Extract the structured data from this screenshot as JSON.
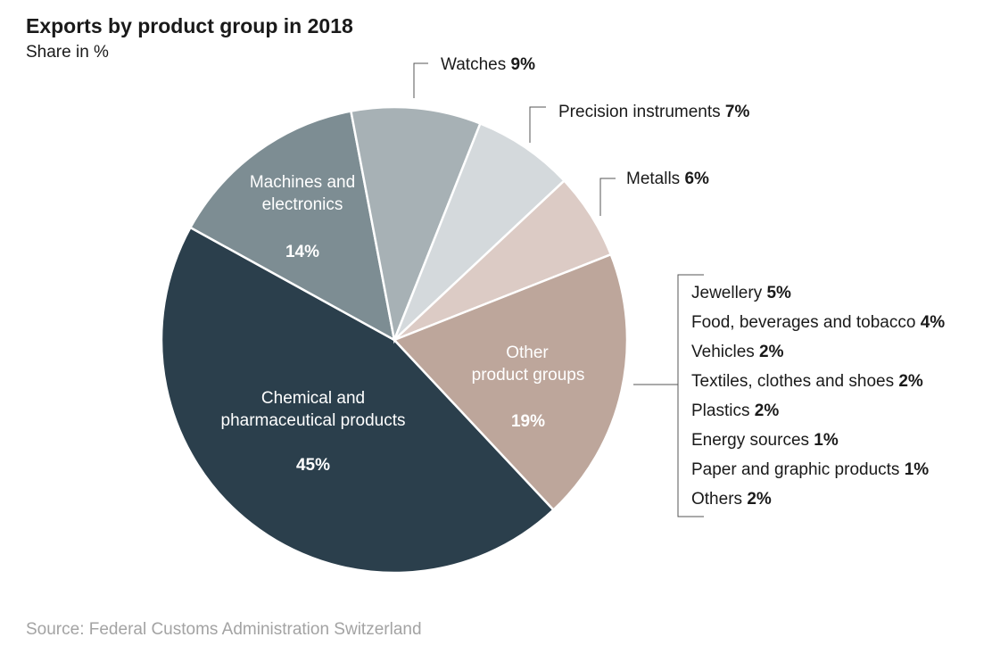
{
  "chart_data": {
    "type": "pie",
    "title": "Exports by product group in 2018",
    "subtitle": "Share in %",
    "source": "Source: Federal Customs Administration Switzerland",
    "slices": [
      {
        "label": "Chemical and pharmaceutical products",
        "value": 45,
        "display": "45%",
        "color": "#2b3f4c"
      },
      {
        "label": "Machines and electronics",
        "value": 14,
        "display": "14%",
        "color": "#7d8d93"
      },
      {
        "label": "Watches",
        "value": 9,
        "display": "9%",
        "color": "#a7b1b5"
      },
      {
        "label": "Precision instruments",
        "value": 7,
        "display": "7%",
        "color": "#d4d9dc"
      },
      {
        "label": "Metalls",
        "value": 6,
        "display": "6%",
        "color": "#dccbc5"
      },
      {
        "label": "Other product groups",
        "value": 19,
        "display": "19%",
        "color": "#bda69b"
      }
    ],
    "inside_labels": {
      "chemical": {
        "lines": [
          "Chemical and",
          "pharmaceutical products"
        ],
        "value": "45%"
      },
      "machines": {
        "lines": [
          "Machines and",
          "electronics"
        ],
        "value": "14%"
      },
      "other": {
        "lines": [
          "Other",
          "product groups"
        ],
        "value": "19%"
      }
    },
    "outside_labels": {
      "watches": {
        "label": "Watches",
        "value": "9%"
      },
      "precision": {
        "label": "Precision instruments",
        "value": "7%"
      },
      "metalls": {
        "label": "Metalls",
        "value": "6%"
      }
    },
    "breakdown": [
      {
        "label": "Jewellery",
        "value": "5%"
      },
      {
        "label": "Food, beverages and tobacco",
        "value": "4%"
      },
      {
        "label": "Vehicles",
        "value": "2%"
      },
      {
        "label": "Textiles, clothes and shoes",
        "value": "2%"
      },
      {
        "label": "Plastics",
        "value": "2%"
      },
      {
        "label": "Energy sources",
        "value": "1%"
      },
      {
        "label": "Paper and graphic products",
        "value": "1%"
      },
      {
        "label": "Others",
        "value": "2%"
      }
    ]
  }
}
